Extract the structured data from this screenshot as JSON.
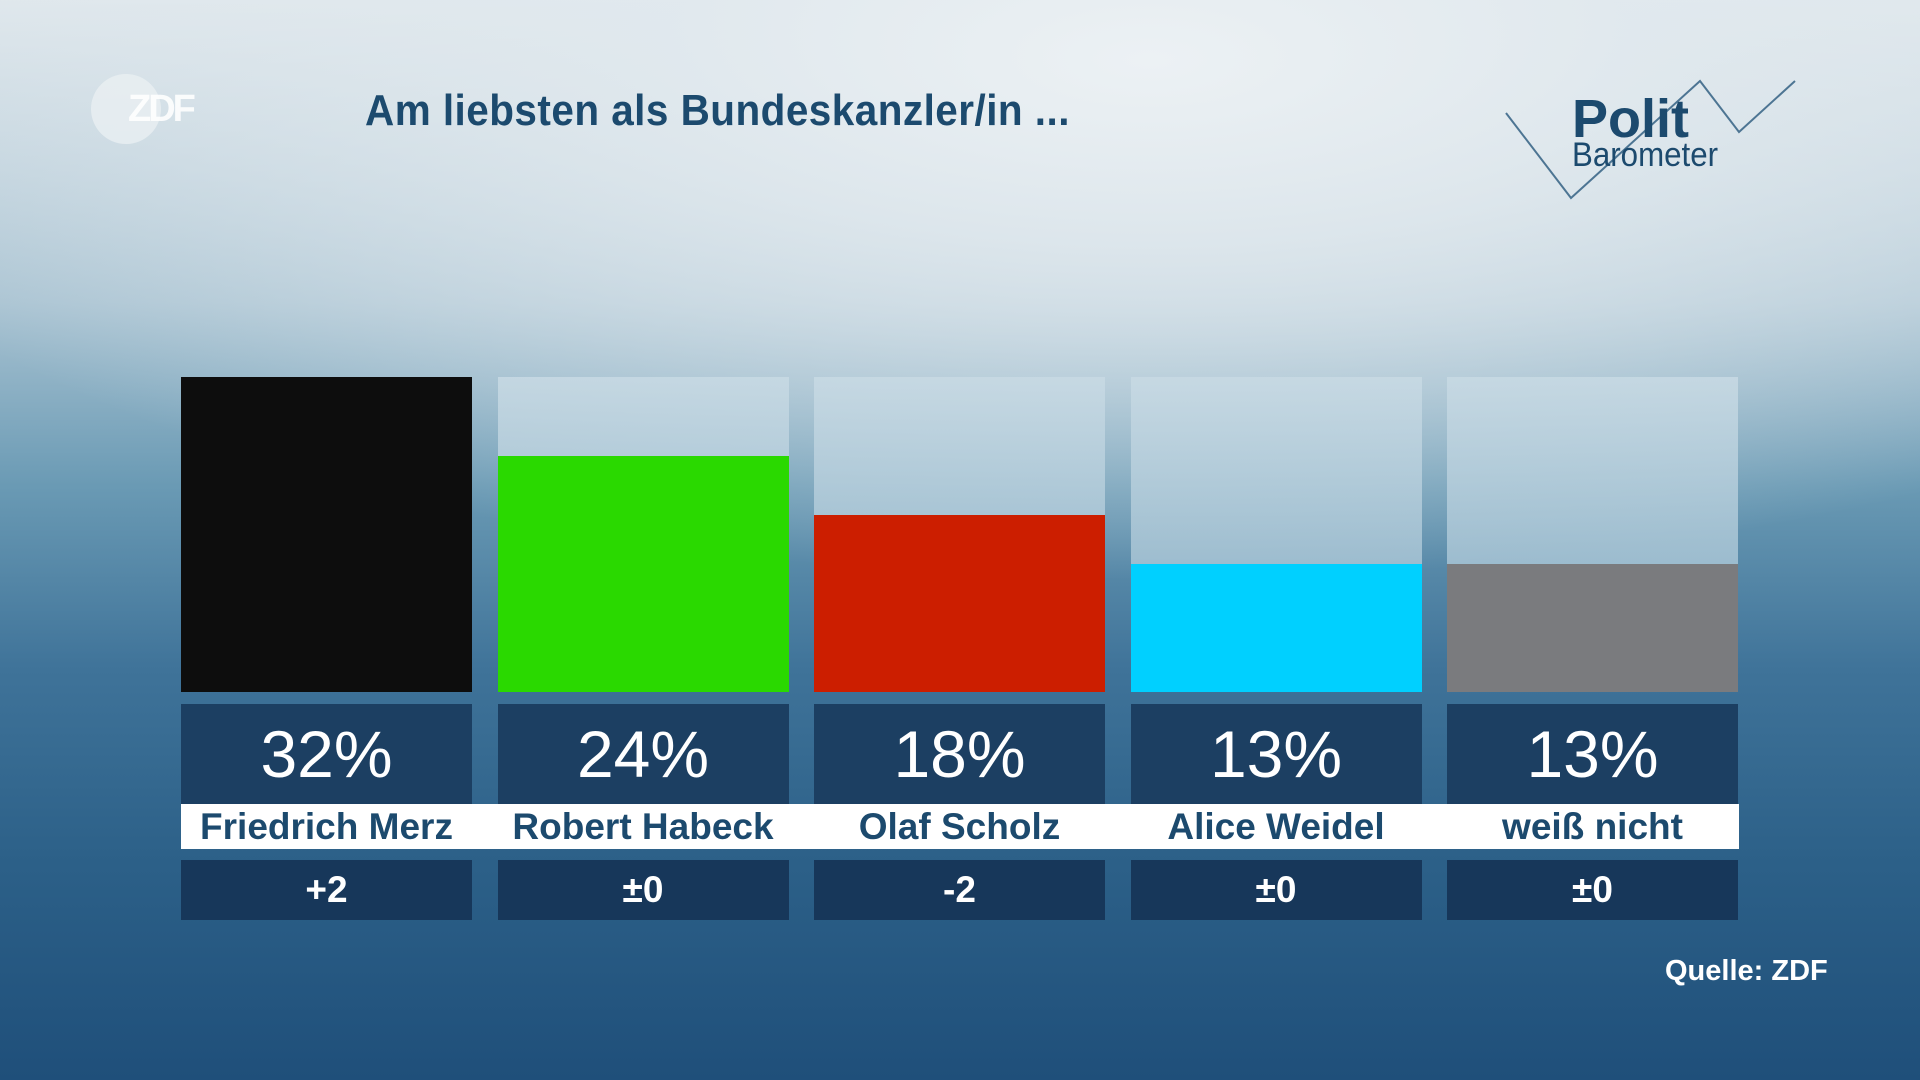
{
  "header": {
    "title": "Am liebsten als Bundeskanzler/in ...",
    "logo": "ZDF",
    "brand_top": "Polit",
    "brand_bottom": "Barometer"
  },
  "source": "Quelle: ZDF",
  "chart_data": {
    "type": "bar",
    "title": "Am liebsten als Bundeskanzler/in ...",
    "categories": [
      "Friedrich Merz",
      "Robert Habeck",
      "Olaf Scholz",
      "Alice Weidel",
      "weiß nicht"
    ],
    "values": [
      32,
      24,
      18,
      13,
      13
    ],
    "value_labels": [
      "32%",
      "24%",
      "18%",
      "13%",
      "13%"
    ],
    "changes": [
      "+2",
      "±0",
      "-2",
      "±0",
      "±0"
    ],
    "colors": [
      "#0d0d0d",
      "#2ad900",
      "#cc1e00",
      "#00d0ff",
      "#7a7b7e"
    ],
    "ylim": [
      0,
      32
    ],
    "grid": false
  }
}
